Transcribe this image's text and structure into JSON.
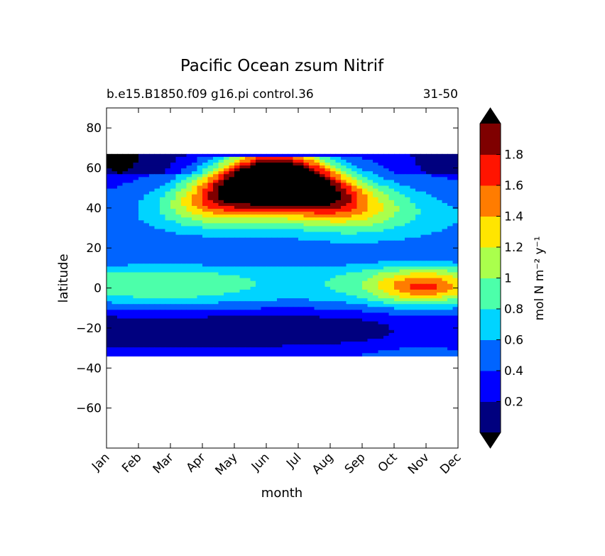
{
  "chart_data": {
    "type": "heatmap",
    "subtype": "filled-contour",
    "title": "Pacific Ocean zsum Nitrif",
    "subtitle_left": "b.e15.B1850.f09 g16.pi control.36",
    "subtitle_right": "31-50",
    "xlabel": "month",
    "ylabel": "latitude",
    "x_ticks": [
      "Jan",
      "Feb",
      "Mar",
      "Apr",
      "May",
      "Jun",
      "Jul",
      "Aug",
      "Sep",
      "Oct",
      "Nov",
      "Dec"
    ],
    "y_ticks": [
      80,
      60,
      40,
      20,
      0,
      -20,
      -40,
      -60
    ],
    "y_tick_labels": [
      "80",
      "60",
      "40",
      "20",
      "0",
      "−20",
      "−40",
      "−60"
    ],
    "ylim": [
      -80,
      90
    ],
    "data_lat_range": [
      -34,
      67
    ],
    "grid": false,
    "colorbar": {
      "label": "mol N m⁻² y⁻¹",
      "levels": [
        0.0,
        0.2,
        0.4,
        0.6,
        0.8,
        1.0,
        1.2,
        1.4,
        1.6,
        1.8,
        2.0
      ],
      "tick_labels": [
        "0.2",
        "0.4",
        "0.6",
        "0.8",
        "1",
        "1.2",
        "1.4",
        "1.6",
        "1.8"
      ],
      "extend": "both",
      "colors": [
        "#00007f",
        "#0000ff",
        "#0064ff",
        "#00d4ff",
        "#4cffaa",
        "#aaff4c",
        "#ffe500",
        "#ff7c00",
        "#ff1400",
        "#7f0000"
      ],
      "under_color": "#000000",
      "over_color": "#000000"
    }
  }
}
